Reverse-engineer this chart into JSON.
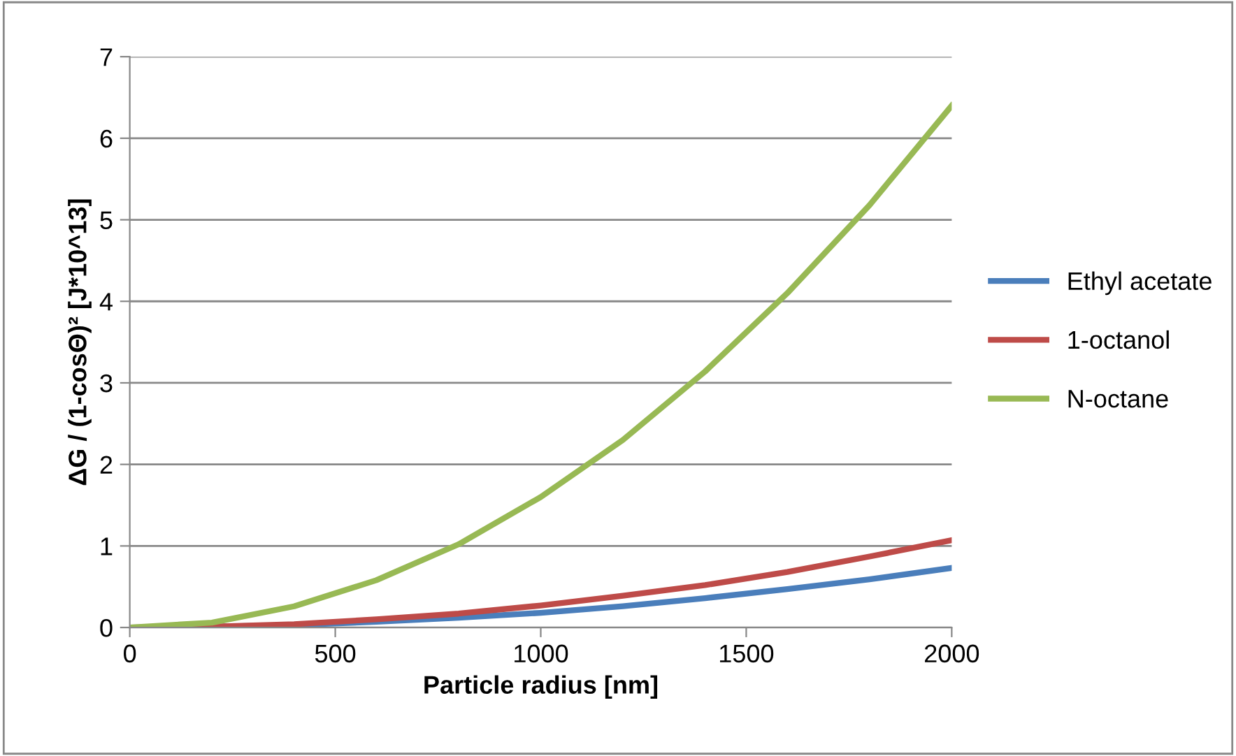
{
  "chart_data": {
    "type": "line",
    "xlabel": "Particle radius [nm]",
    "ylabel": "ΔG / (1-cosΘ)² [J*10^13]",
    "x": [
      0,
      200,
      400,
      600,
      800,
      1000,
      1200,
      1400,
      1600,
      1800,
      2000
    ],
    "series": [
      {
        "name": "Ethyl acetate",
        "color": "#4a7ebb",
        "values": [
          0,
          0.01,
          0.03,
          0.07,
          0.12,
          0.18,
          0.26,
          0.36,
          0.47,
          0.59,
          0.73
        ]
      },
      {
        "name": "1-octanol",
        "color": "#be4b48",
        "values": [
          0,
          0.01,
          0.04,
          0.1,
          0.17,
          0.27,
          0.39,
          0.52,
          0.68,
          0.87,
          1.07
        ]
      },
      {
        "name": "N-octane",
        "color": "#98b954",
        "values": [
          0,
          0.06,
          0.26,
          0.58,
          1.02,
          1.6,
          2.3,
          3.14,
          4.1,
          5.18,
          6.4
        ]
      }
    ],
    "xlim": [
      0,
      2000
    ],
    "xticks": [
      0,
      500,
      1000,
      1500,
      2000
    ],
    "ylim": [
      0,
      7
    ],
    "yticks": [
      0,
      1,
      2,
      3,
      4,
      5,
      6,
      7
    ],
    "grid": "y",
    "legend": "right",
    "marker": "none",
    "line_style": "solid"
  }
}
